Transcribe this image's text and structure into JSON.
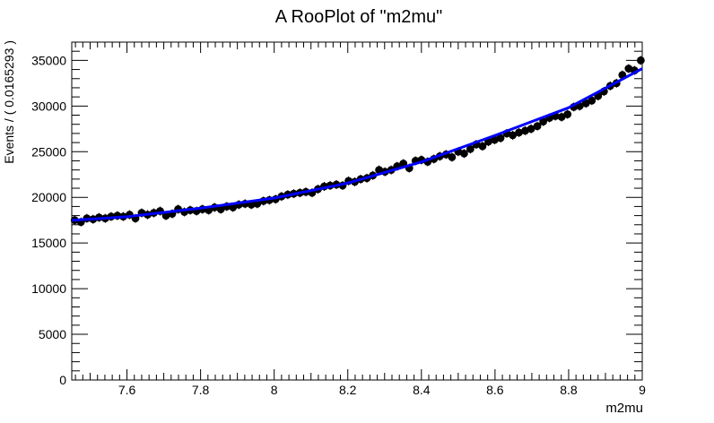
{
  "chart_data": {
    "type": "scatter",
    "title": "A RooPlot of \"m2mu\"",
    "xlabel": "m2mu",
    "ylabel": "Events / ( 0.0165293 )",
    "xlim": [
      7.45,
      9.0
    ],
    "ylim": [
      0,
      37000
    ],
    "x_ticks": [
      7.6,
      7.8,
      8,
      8.2,
      8.4,
      8.6,
      8.8,
      9
    ],
    "x_tick_labels": [
      "7.6",
      "7.8",
      "8",
      "8.2",
      "8.4",
      "8.6",
      "8.8",
      "9"
    ],
    "y_ticks": [
      0,
      5000,
      10000,
      15000,
      20000,
      25000,
      30000,
      35000
    ],
    "y_tick_labels": [
      "0",
      "5000",
      "10000",
      "15000",
      "20000",
      "25000",
      "30000",
      "35000"
    ],
    "grid": false,
    "series": [
      {
        "kind": "points",
        "color": "#000000",
        "x": [
          7.458,
          7.475,
          7.491,
          7.508,
          7.524,
          7.541,
          7.557,
          7.574,
          7.59,
          7.607,
          7.623,
          7.64,
          7.656,
          7.673,
          7.69,
          7.706,
          7.723,
          7.739,
          7.756,
          7.772,
          7.789,
          7.805,
          7.822,
          7.838,
          7.855,
          7.871,
          7.888,
          7.904,
          7.921,
          7.938,
          7.954,
          7.971,
          7.987,
          8.004,
          8.02,
          8.037,
          8.053,
          8.07,
          8.086,
          8.103,
          8.119,
          8.136,
          8.152,
          8.169,
          8.186,
          8.202,
          8.219,
          8.235,
          8.252,
          8.268,
          8.285,
          8.301,
          8.318,
          8.334,
          8.351,
          8.367,
          8.384,
          8.4,
          8.417,
          8.434,
          8.45,
          8.467,
          8.483,
          8.5,
          8.516,
          8.533,
          8.549,
          8.566,
          8.582,
          8.599,
          8.615,
          8.632,
          8.648,
          8.665,
          8.682,
          8.698,
          8.715,
          8.731,
          8.748,
          8.764,
          8.781,
          8.797,
          8.814,
          8.83,
          8.847,
          8.863,
          8.88,
          8.896,
          8.913,
          8.93,
          8.946,
          8.963,
          8.979,
          8.996
        ],
        "y": [
          17500,
          17300,
          17700,
          17600,
          17800,
          17700,
          17900,
          18000,
          17900,
          18100,
          17700,
          18300,
          18100,
          18300,
          18500,
          18000,
          18200,
          18700,
          18400,
          18600,
          18500,
          18700,
          18600,
          18900,
          18700,
          19000,
          18900,
          19200,
          19300,
          19200,
          19300,
          19600,
          19700,
          19800,
          20100,
          20300,
          20400,
          20500,
          20600,
          20500,
          20900,
          21200,
          21300,
          21400,
          21300,
          21800,
          21700,
          22000,
          22100,
          22400,
          23000,
          22800,
          23000,
          23400,
          23700,
          23200,
          24000,
          24100,
          23900,
          24200,
          24500,
          24700,
          24400,
          25000,
          24800,
          25300,
          25800,
          25600,
          26100,
          26300,
          26500,
          27000,
          26800,
          27100,
          27300,
          27500,
          27800,
          28300,
          28700,
          28900,
          28800,
          29100,
          29900,
          30000,
          30300,
          30600,
          31100,
          31600,
          32200,
          32500,
          33400,
          34100,
          33900,
          35000
        ]
      },
      {
        "kind": "line",
        "color": "#0000ff",
        "x": [
          7.45,
          7.6,
          7.8,
          8.0,
          8.2,
          8.4,
          8.6,
          8.8,
          9.0
        ],
        "y": [
          17480,
          17880,
          18820,
          19920,
          21560,
          23880,
          26780,
          29820,
          34100
        ]
      }
    ]
  }
}
